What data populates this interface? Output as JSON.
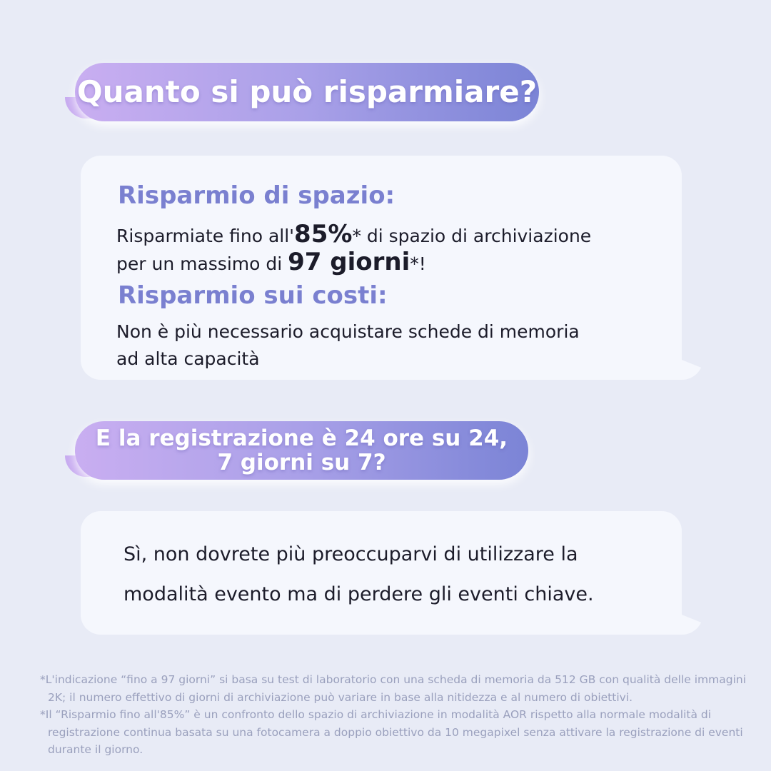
{
  "heading1": "Quanto si può risparmiare?",
  "card1": {
    "space_title": "Risparmio di spazio:",
    "space_l1_a": "Risparmiate fino all'",
    "space_l1_big": "85%",
    "space_l1_b": "* di spazio di archiviazione",
    "space_l2_a": "per un massimo di ",
    "space_l2_big": "97 giorni",
    "space_l2_b": "*!",
    "cost_title": "Risparmio sui costi:",
    "cost_l1": "Non è più necessario acquistare schede di memoria",
    "cost_l2": "ad alta capacità"
  },
  "heading2": {
    "line1": "E la registrazione è 24 ore su 24,",
    "line2": "7 giorni su 7?"
  },
  "card2": {
    "line1": "Sì, non dovrete più preoccuparvi di utilizzare la",
    "line2": "modalità evento ma di perdere gli eventi chiave."
  },
  "footnotes": [
    "*L'indicazione “fino a 97 giorni” si basa su test di laboratorio con una scheda di memoria da 512 GB con qualità delle immagini 2K; il numero effettivo di giorni di archiviazione può variare in base alla nitidezza e al numero di obiettivi.",
    "*Il “Risparmio fino all'85%” è un confronto dello spazio di archiviazione in modalità AOR rispetto alla normale modalità di registrazione continua basata su una fotocamera a doppio obiettivo da 10 megapixel senza attivare la registrazione di eventi durante il giorno."
  ],
  "colors": {
    "background": "#e8ebf6",
    "accent": "#7a80d0",
    "gradient_start": "#c9aef1",
    "gradient_end": "#7b84d6"
  }
}
